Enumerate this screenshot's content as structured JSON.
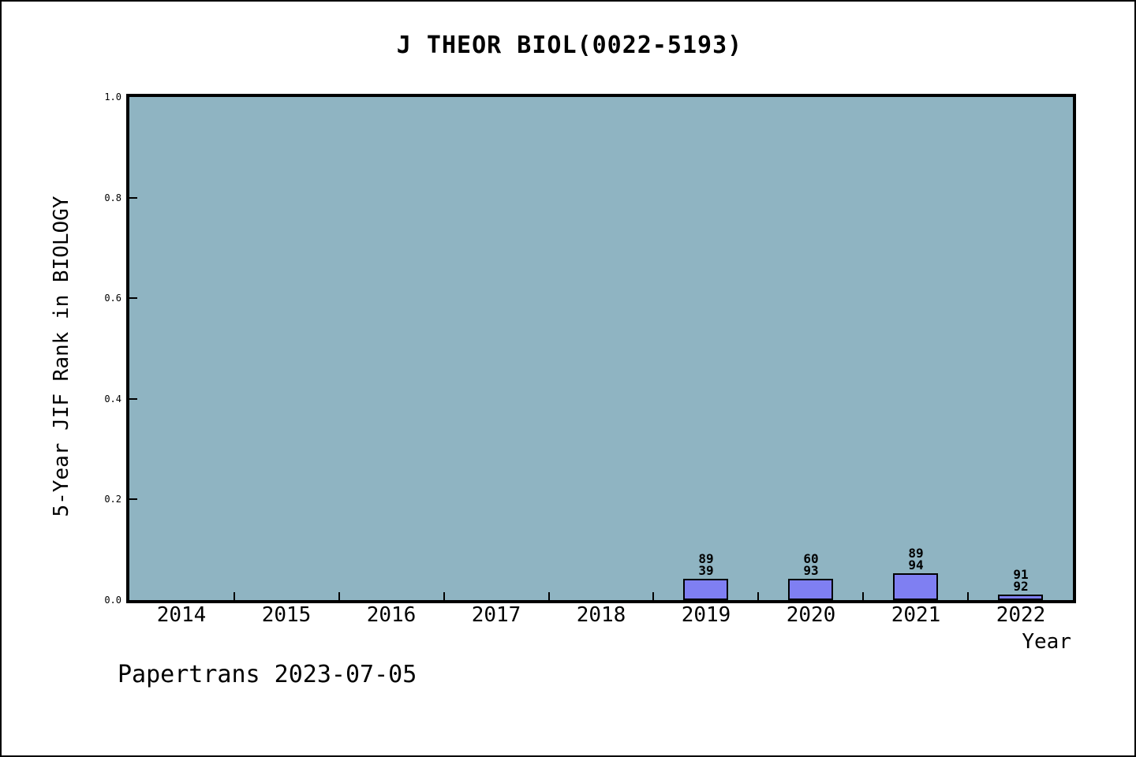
{
  "footer": {
    "text": "Papertrans 2023-07-05"
  },
  "chart_data": {
    "type": "bar",
    "title": "J THEOR BIOL(0022-5193)",
    "xlabel": "Year",
    "ylabel": "5-Year JIF Rank in BIOLOGY",
    "categories": [
      "2014",
      "2015",
      "2016",
      "2017",
      "2018",
      "2019",
      "2020",
      "2021",
      "2022"
    ],
    "values": [
      null,
      null,
      null,
      null,
      null,
      0.043,
      0.043,
      0.053,
      0.011
    ],
    "bars": [
      {
        "category": "2019",
        "value": 0.043,
        "annotation": [
          "89",
          "39"
        ]
      },
      {
        "category": "2020",
        "value": 0.043,
        "annotation": [
          "60",
          "93"
        ]
      },
      {
        "category": "2021",
        "value": 0.053,
        "annotation": [
          "89",
          "94"
        ]
      },
      {
        "category": "2022",
        "value": 0.011,
        "annotation": [
          "91",
          "92"
        ]
      }
    ],
    "ylim": [
      0.0,
      1.0
    ],
    "ytick_labels": [
      "1.0",
      "0.8",
      "0.6",
      "0.4",
      "0.2",
      "0.0"
    ],
    "grid": "off",
    "legend": "none",
    "layout": "ticks between categories, plot background filled",
    "colors": {
      "page_bg": "#ffffff",
      "plot_bg": "#8fb4c2",
      "bar_fill": "#7f7ff2",
      "bar_edge": "#000000",
      "frame": "#000000",
      "text": "#000000"
    }
  }
}
